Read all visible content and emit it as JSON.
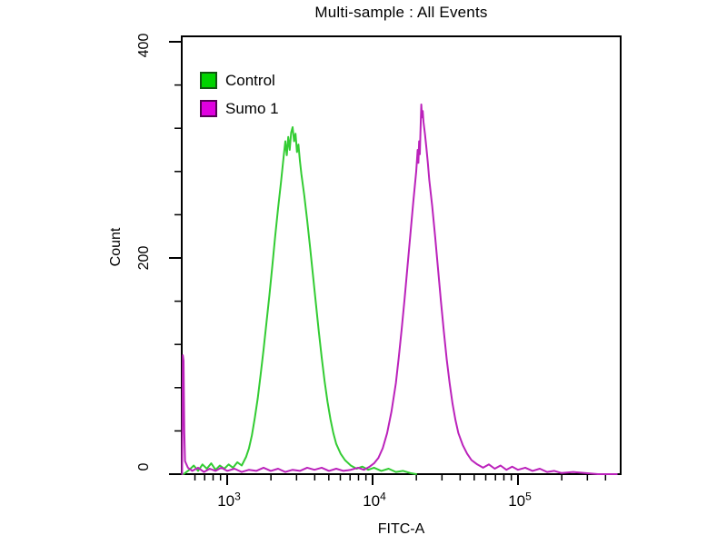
{
  "title": "Multi-sample : All Events",
  "chart_data": {
    "type": "line",
    "subtype": "flow-cytometry-histogram-overlay",
    "title": "Multi-sample : All Events",
    "xlabel": "FITC-A",
    "ylabel": "Count",
    "x_scale": "log10",
    "xlim_log": [
      2.69,
      5.71
    ],
    "ylim": [
      0,
      405
    ],
    "grid": false,
    "y_ticks_major": [
      0,
      200,
      400
    ],
    "y_tick_labels": {
      "t400": "400",
      "t200": "200",
      "t0": "0"
    },
    "y_minor_step": 40,
    "x_ticks": [
      {
        "base": "10",
        "exp": "3",
        "log": 3
      },
      {
        "base": "10",
        "exp": "4",
        "log": 4
      },
      {
        "base": "10",
        "exp": "5",
        "log": 5
      }
    ],
    "legend_position": "top-left-inside",
    "legend": [
      {
        "label": "Control",
        "color": "#00d400",
        "border": "#115511"
      },
      {
        "label": "Sumo 1",
        "color": "#e000e0",
        "border": "#550055"
      }
    ],
    "axis_color": "#000000",
    "series": [
      {
        "name": "Control",
        "color": "#33cc33",
        "peak_log10_x": 3.45,
        "peak_count": 321,
        "points": [
          [
            2.7,
            0
          ],
          [
            2.74,
            4
          ],
          [
            2.77,
            8
          ],
          [
            2.8,
            3
          ],
          [
            2.83,
            9
          ],
          [
            2.86,
            5
          ],
          [
            2.89,
            10
          ],
          [
            2.92,
            4
          ],
          [
            2.95,
            8
          ],
          [
            2.98,
            5
          ],
          [
            3.01,
            9
          ],
          [
            3.04,
            6
          ],
          [
            3.07,
            11
          ],
          [
            3.1,
            8
          ],
          [
            3.13,
            16
          ],
          [
            3.15,
            24
          ],
          [
            3.17,
            36
          ],
          [
            3.19,
            52
          ],
          [
            3.21,
            70
          ],
          [
            3.23,
            92
          ],
          [
            3.25,
            115
          ],
          [
            3.27,
            140
          ],
          [
            3.29,
            165
          ],
          [
            3.31,
            192
          ],
          [
            3.33,
            220
          ],
          [
            3.35,
            246
          ],
          [
            3.37,
            270
          ],
          [
            3.38,
            283
          ],
          [
            3.39,
            296
          ],
          [
            3.4,
            308
          ],
          [
            3.41,
            295
          ],
          [
            3.42,
            312
          ],
          [
            3.43,
            300
          ],
          [
            3.44,
            316
          ],
          [
            3.45,
            321
          ],
          [
            3.46,
            308
          ],
          [
            3.47,
            315
          ],
          [
            3.48,
            298
          ],
          [
            3.49,
            305
          ],
          [
            3.5,
            290
          ],
          [
            3.51,
            278
          ],
          [
            3.53,
            258
          ],
          [
            3.55,
            235
          ],
          [
            3.57,
            210
          ],
          [
            3.59,
            184
          ],
          [
            3.61,
            158
          ],
          [
            3.63,
            132
          ],
          [
            3.65,
            108
          ],
          [
            3.67,
            86
          ],
          [
            3.69,
            67
          ],
          [
            3.71,
            51
          ],
          [
            3.73,
            38
          ],
          [
            3.75,
            28
          ],
          [
            3.78,
            19
          ],
          [
            3.81,
            13
          ],
          [
            3.85,
            8
          ],
          [
            3.89,
            5
          ],
          [
            3.93,
            7
          ],
          [
            3.97,
            4
          ],
          [
            4.01,
            6
          ],
          [
            4.06,
            3
          ],
          [
            4.11,
            5
          ],
          [
            4.16,
            2
          ],
          [
            4.21,
            3
          ],
          [
            4.26,
            1
          ],
          [
            4.3,
            0
          ]
        ]
      },
      {
        "name": "Sumo 1",
        "color": "#bb22bb",
        "peak_log10_x": 4.33,
        "peak_count": 342,
        "edge_spike_count": 110,
        "points": [
          [
            2.69,
            0
          ],
          [
            2.695,
            110
          ],
          [
            2.7,
            105
          ],
          [
            2.705,
            40
          ],
          [
            2.71,
            12
          ],
          [
            2.73,
            6
          ],
          [
            2.76,
            3
          ],
          [
            2.8,
            6
          ],
          [
            2.84,
            2
          ],
          [
            2.88,
            5
          ],
          [
            2.92,
            3
          ],
          [
            2.96,
            6
          ],
          [
            3.0,
            3
          ],
          [
            3.05,
            5
          ],
          [
            3.1,
            2
          ],
          [
            3.15,
            4
          ],
          [
            3.2,
            3
          ],
          [
            3.25,
            6
          ],
          [
            3.3,
            3
          ],
          [
            3.35,
            5
          ],
          [
            3.4,
            2
          ],
          [
            3.45,
            4
          ],
          [
            3.5,
            3
          ],
          [
            3.55,
            6
          ],
          [
            3.6,
            4
          ],
          [
            3.65,
            6
          ],
          [
            3.7,
            3
          ],
          [
            3.75,
            5
          ],
          [
            3.8,
            3
          ],
          [
            3.85,
            4
          ],
          [
            3.9,
            6
          ],
          [
            3.94,
            4
          ],
          [
            3.98,
            7
          ],
          [
            4.01,
            10
          ],
          [
            4.04,
            15
          ],
          [
            4.07,
            24
          ],
          [
            4.1,
            38
          ],
          [
            4.13,
            58
          ],
          [
            4.16,
            84
          ],
          [
            4.18,
            108
          ],
          [
            4.2,
            134
          ],
          [
            4.22,
            162
          ],
          [
            4.24,
            192
          ],
          [
            4.26,
            222
          ],
          [
            4.28,
            252
          ],
          [
            4.29,
            266
          ],
          [
            4.3,
            280
          ],
          [
            4.31,
            300
          ],
          [
            4.315,
            288
          ],
          [
            4.32,
            308
          ],
          [
            4.325,
            296
          ],
          [
            4.33,
            320
          ],
          [
            4.335,
            342
          ],
          [
            4.34,
            330
          ],
          [
            4.345,
            336
          ],
          [
            4.35,
            326
          ],
          [
            4.36,
            315
          ],
          [
            4.37,
            302
          ],
          [
            4.38,
            288
          ],
          [
            4.39,
            272
          ],
          [
            4.41,
            248
          ],
          [
            4.43,
            220
          ],
          [
            4.45,
            190
          ],
          [
            4.47,
            160
          ],
          [
            4.49,
            132
          ],
          [
            4.51,
            106
          ],
          [
            4.53,
            84
          ],
          [
            4.55,
            65
          ],
          [
            4.57,
            50
          ],
          [
            4.59,
            38
          ],
          [
            4.62,
            27
          ],
          [
            4.65,
            19
          ],
          [
            4.68,
            13
          ],
          [
            4.72,
            9
          ],
          [
            4.76,
            6
          ],
          [
            4.8,
            9
          ],
          [
            4.84,
            5
          ],
          [
            4.88,
            8
          ],
          [
            4.92,
            4
          ],
          [
            4.96,
            7
          ],
          [
            5.0,
            4
          ],
          [
            5.05,
            6
          ],
          [
            5.1,
            3
          ],
          [
            5.15,
            5
          ],
          [
            5.2,
            2
          ],
          [
            5.25,
            3
          ],
          [
            5.3,
            1
          ],
          [
            5.38,
            2
          ],
          [
            5.46,
            1
          ],
          [
            5.55,
            0
          ],
          [
            5.68,
            0
          ]
        ]
      }
    ]
  }
}
